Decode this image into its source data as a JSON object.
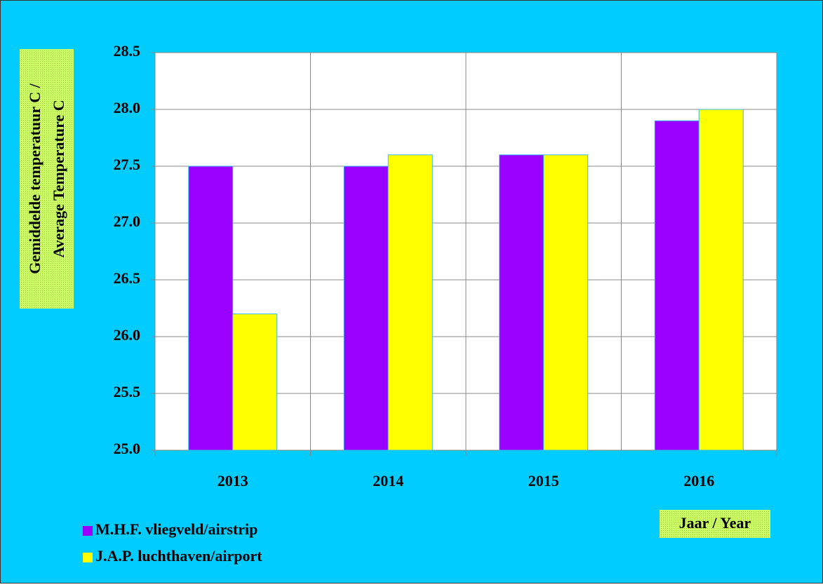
{
  "chart_data": {
    "type": "bar",
    "ylabel": [
      "Gemiddelde temperatuur C /",
      "Average Temperature  C"
    ],
    "xlabel": "Jaar / Year",
    "categories": [
      "2013",
      "2014",
      "2015",
      "2016"
    ],
    "series": [
      {
        "name": "M.H.F. vliegveld/airstrip",
        "color": "#9900ff",
        "values": [
          27.5,
          27.5,
          27.6,
          27.9
        ]
      },
      {
        "name": "J.A.P. luchthaven/airport",
        "color": "#ffff00",
        "values": [
          26.2,
          27.6,
          27.6,
          28.0
        ]
      }
    ],
    "ylim": [
      25,
      28.5
    ],
    "yticks": [
      {
        "value": 25,
        "label": "25.0"
      },
      25.5,
      {
        "value": 26,
        "label": "26.0"
      },
      26.5,
      {
        "value": 27,
        "label": "27.0"
      },
      27.5,
      {
        "value": 28,
        "label": "28.0"
      },
      28.5
    ],
    "grid": true
  }
}
